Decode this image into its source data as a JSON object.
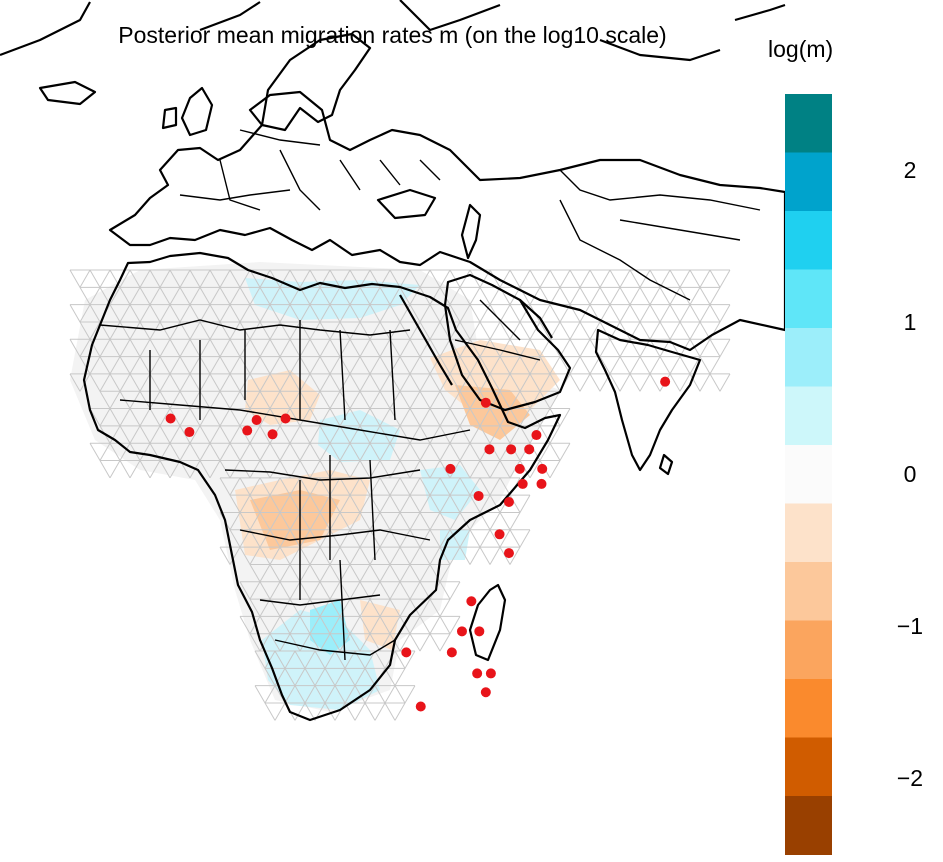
{
  "title": "Posterior mean migration rates m (on the log10 scale)",
  "legend": {
    "title": "log(m)",
    "ticks": [
      "2",
      "1",
      "0",
      "−1",
      "−2"
    ],
    "tick_values": [
      2,
      1,
      0,
      -1,
      -2
    ],
    "range": [
      -2.5,
      2.5
    ],
    "colors": [
      "#008184",
      "#00A3CC",
      "#1FD0F0",
      "#5FE6F8",
      "#9CEEFA",
      "#CDF7FA",
      "#FBFBFB",
      "#FDE2CA",
      "#FCC89B",
      "#FBA55E",
      "#FA8A2D",
      "#D05C00",
      "#994000"
    ]
  },
  "samples": {
    "color": "#E8141A",
    "points": [
      [
        -16.1,
        12.3
      ],
      [
        -13.5,
        10.5
      ],
      [
        -5.5,
        10.7
      ],
      [
        -2.0,
        10.2
      ],
      [
        -4.2,
        12.1
      ],
      [
        -0.2,
        12.3
      ],
      [
        27.5,
        14.4
      ],
      [
        34.5,
        10.1
      ],
      [
        28.0,
        8.2
      ],
      [
        31.0,
        8.2
      ],
      [
        33.5,
        8.2
      ],
      [
        32.2,
        5.6
      ],
      [
        35.3,
        5.6
      ],
      [
        22.6,
        5.6
      ],
      [
        32.6,
        3.6
      ],
      [
        35.2,
        3.6
      ],
      [
        26.5,
        2.0
      ],
      [
        30.7,
        1.2
      ],
      [
        29.4,
        -3.1
      ],
      [
        30.7,
        -5.6
      ],
      [
        25.5,
        -12.0
      ],
      [
        24.2,
        -16.0
      ],
      [
        26.6,
        -16.0
      ],
      [
        22.8,
        -18.8
      ],
      [
        26.3,
        -21.6
      ],
      [
        28.2,
        -21.6
      ],
      [
        27.5,
        -24.1
      ],
      [
        16.5,
        -18.8
      ],
      [
        18.5,
        -26.0
      ],
      [
        52.3,
        17.2
      ]
    ]
  },
  "map": {
    "lon_range": [
      -40,
      95
    ],
    "lat_range": [
      -45,
      80
    ],
    "coastline_color": "#000000",
    "grid_color": "#C8C8C8"
  }
}
